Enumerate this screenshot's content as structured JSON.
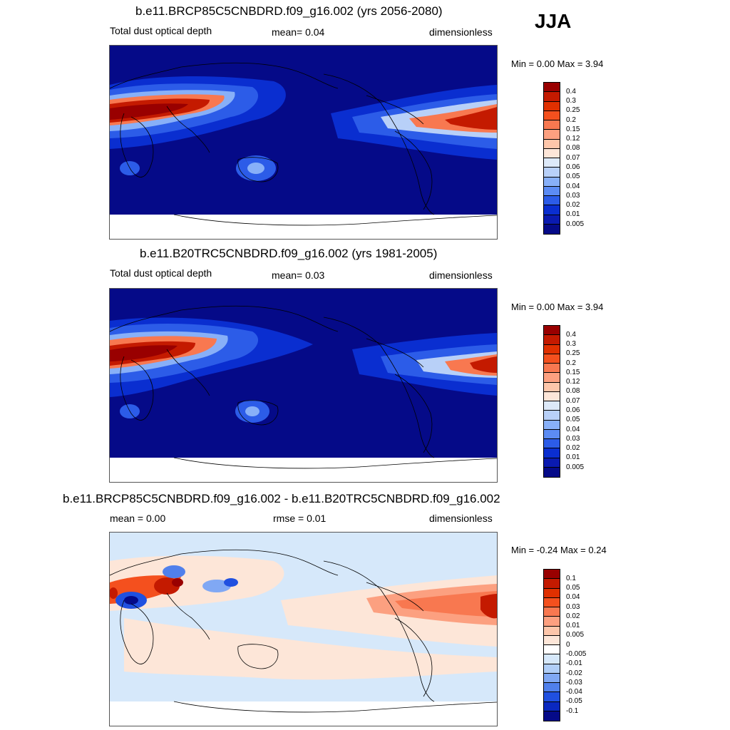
{
  "season": "JJA",
  "panels": [
    {
      "title": "b.e11.BRCP85C5CNBDRD.f09_g16.002 (yrs 2056-2080)",
      "left": "Total dust optical depth",
      "center": "mean=   0.04",
      "right": "dimensionless",
      "minmax": "Min =    0.00 Max =    3.94",
      "scale_labels": [
        "0.4",
        "0.3",
        "0.25",
        "0.2",
        "0.15",
        "0.12",
        "0.08",
        "0.07",
        "0.06",
        "0.05",
        "0.04",
        "0.03",
        "0.02",
        "0.01",
        "0.005"
      ],
      "scale_colors": [
        "#990000",
        "#c41a00",
        "#e03000",
        "#f4501e",
        "#f87850",
        "#fca080",
        "#fdc6aa",
        "#fde6d8",
        "#dde9f8",
        "#b8d0f8",
        "#88b0f8",
        "#5c8cf4",
        "#2c5ce8",
        "#0a2ed0",
        "#0a1ab0",
        "#050a88"
      ]
    },
    {
      "title": "b.e11.B20TRC5CNBDRD.f09_g16.002 (yrs 1981-2005)",
      "left": "Total dust optical depth",
      "center": "mean=   0.03",
      "right": "dimensionless",
      "minmax": "Min =    0.00 Max =    3.94",
      "scale_labels": [
        "0.4",
        "0.3",
        "0.25",
        "0.2",
        "0.15",
        "0.12",
        "0.08",
        "0.07",
        "0.06",
        "0.05",
        "0.04",
        "0.03",
        "0.02",
        "0.01",
        "0.005"
      ],
      "scale_colors": [
        "#990000",
        "#c41a00",
        "#e03000",
        "#f4501e",
        "#f87850",
        "#fca080",
        "#fdc6aa",
        "#fde6d8",
        "#dde9f8",
        "#b8d0f8",
        "#88b0f8",
        "#5c8cf4",
        "#2c5ce8",
        "#0a2ed0",
        "#0a1ab0",
        "#050a88"
      ]
    },
    {
      "title": "b.e11.BRCP85C5CNBDRD.f09_g16.002 - b.e11.B20TRC5CNBDRD.f09_g16.002",
      "left": "mean =   0.00",
      "center": "rmse =   0.01",
      "right": "dimensionless",
      "minmax": "Min =  -0.24 Max =    0.24",
      "scale_labels": [
        "0.1",
        "0.05",
        "0.04",
        "0.03",
        "0.02",
        "0.01",
        "0.005",
        "0",
        "-0.005",
        "-0.01",
        "-0.02",
        "-0.03",
        "-0.04",
        "-0.05",
        "-0.1"
      ],
      "scale_colors": [
        "#990000",
        "#c41a00",
        "#e03000",
        "#f4501e",
        "#f87850",
        "#fca080",
        "#fdc6aa",
        "#fde6d8",
        "#ffffff",
        "#d6e8fa",
        "#b0cef8",
        "#80a8f4",
        "#5080ec",
        "#2050e0",
        "#0a28c0",
        "#050a88"
      ]
    }
  ]
}
